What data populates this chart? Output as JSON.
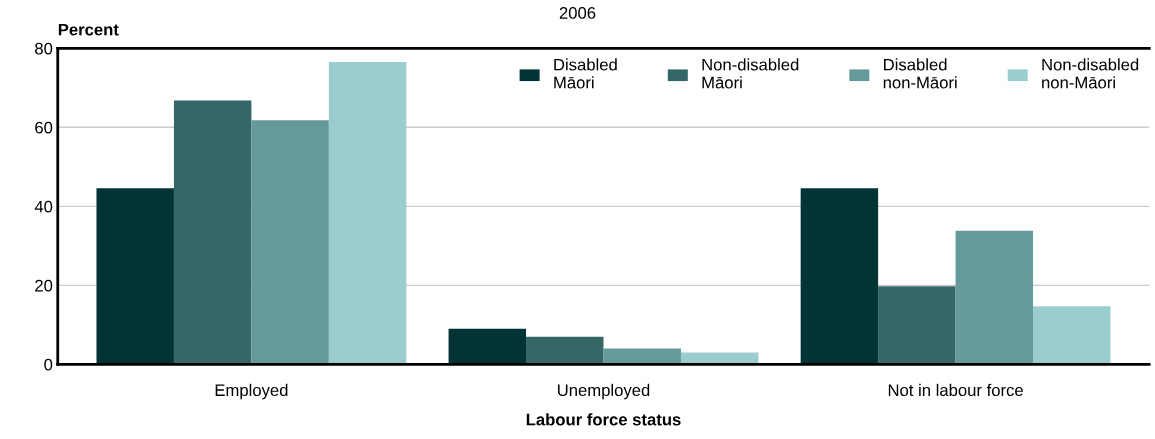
{
  "chart_data": {
    "type": "bar",
    "title": "2006",
    "xlabel": "Labour force status",
    "ylabel": "Percent",
    "categories": [
      "Employed",
      "Unemployed",
      "Not in labour force"
    ],
    "series": [
      {
        "name": "Disabled\nMāori",
        "color": "#023335",
        "values": [
          44.6,
          9.0,
          44.6
        ]
      },
      {
        "name": "Non-disabled\nMāori",
        "color": "#356767",
        "values": [
          66.8,
          7.0,
          19.8
        ]
      },
      {
        "name": "Disabled\nnon-Māori",
        "color": "#669999",
        "values": [
          61.8,
          4.0,
          33.8
        ]
      },
      {
        "name": "Non-disabled\nnon-Māori",
        "color": "#9bcdcf",
        "values": [
          76.5,
          3.0,
          14.7
        ]
      }
    ],
    "ylim": [
      0,
      80
    ],
    "yticks": [
      0,
      20,
      40,
      60,
      80
    ],
    "grid": "y",
    "legend": "top right"
  }
}
